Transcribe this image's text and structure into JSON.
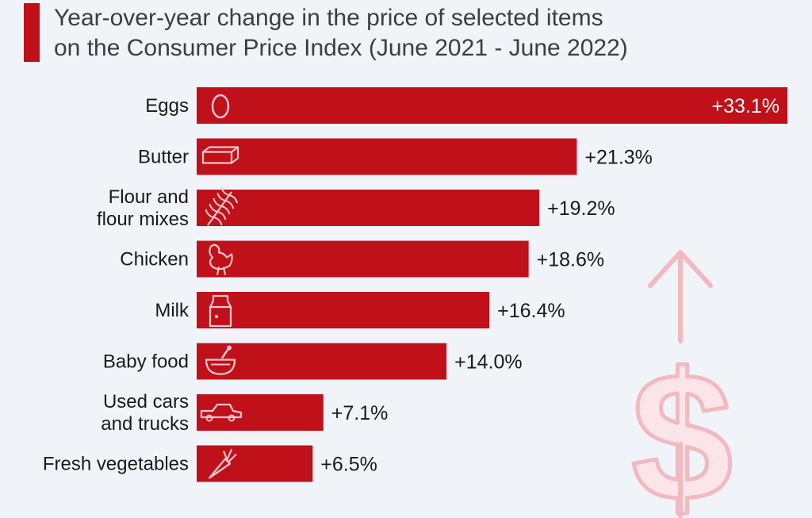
{
  "title": "Year-over-year change in the price of selected items\non the Consumer Price Index (June 2021 - June 2022)",
  "colors": {
    "bar": "#c0101a",
    "accent": "#c0101a",
    "background": "#f0f4f9",
    "icon": "#f2c6ca",
    "decoration": "#f6c8cd"
  },
  "chart_data": {
    "type": "bar",
    "orientation": "horizontal",
    "title": "Year-over-year change in the price of selected items on the Consumer Price Index (June 2021 - June 2022)",
    "categories": [
      [
        "Eggs"
      ],
      [
        "Butter"
      ],
      [
        "Flour and",
        "flour mixes"
      ],
      [
        "Chicken"
      ],
      [
        "Milk"
      ],
      [
        "Baby food"
      ],
      [
        "Used cars",
        "and trucks"
      ],
      [
        "Fresh vegetables"
      ]
    ],
    "values": [
      33.1,
      21.3,
      19.2,
      18.6,
      16.4,
      14.0,
      7.1,
      6.5
    ],
    "value_labels": [
      "+33.1%",
      "+21.3%",
      "+19.2%",
      "+18.6%",
      "+16.4%",
      "+14.0%",
      "+7.1%",
      "+6.5%"
    ],
    "icons": [
      "egg-icon",
      "butter-icon",
      "wheat-icon",
      "chicken-icon",
      "milk-carton-icon",
      "baby-food-bowl-icon",
      "car-icon",
      "carrot-icon"
    ],
    "xlim": [
      0,
      33.1
    ],
    "grid": false,
    "legend": "none"
  },
  "decoration": {
    "icon": "dollar-rising-arrow-icon"
  }
}
